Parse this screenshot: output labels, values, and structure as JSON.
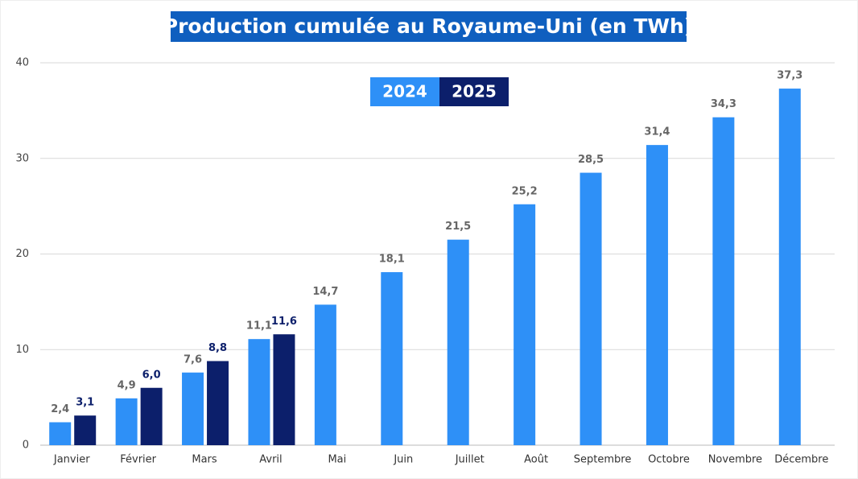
{
  "chart_data": {
    "type": "bar",
    "title": "Production cumulée au Royaume-Uni (en TWh)",
    "categories": [
      "Janvier",
      "Février",
      "Mars",
      "Avril",
      "Mai",
      "Juin",
      "Juillet",
      "Août",
      "Septembre",
      "Octobre",
      "Novembre",
      "Décembre"
    ],
    "series": [
      {
        "name": "2024",
        "color": "#2e90f7",
        "values": [
          2.4,
          4.9,
          7.6,
          11.1,
          14.7,
          18.1,
          21.5,
          25.2,
          28.5,
          31.4,
          34.3,
          37.3
        ],
        "value_labels": [
          "2,4",
          "4,9",
          "7,6",
          "11,1",
          "14,7",
          "18,1",
          "21,5",
          "25,2",
          "28,5",
          "31,4",
          "34,3",
          "37,3"
        ]
      },
      {
        "name": "2025",
        "color": "#0c1f6b",
        "values": [
          3.1,
          6.0,
          8.8,
          11.6,
          null,
          null,
          null,
          null,
          null,
          null,
          null,
          null
        ],
        "value_labels": [
          "3,1",
          "6,0",
          "8,8",
          "11,6",
          null,
          null,
          null,
          null,
          null,
          null,
          null,
          null
        ]
      }
    ],
    "ylim": [
      0,
      40
    ],
    "yticks": [
      0,
      10,
      20,
      30,
      40
    ],
    "grid": true
  }
}
